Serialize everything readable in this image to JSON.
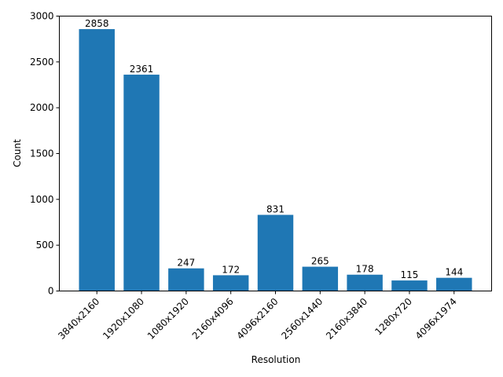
{
  "chart_data": {
    "type": "bar",
    "title": "",
    "xlabel": "Resolution",
    "ylabel": "Count",
    "categories": [
      "3840x2160",
      "1920x1080",
      "1080x1920",
      "2160x4096",
      "4096x2160",
      "2560x1440",
      "2160x3840",
      "1280x720",
      "4096x1974"
    ],
    "values": [
      2858,
      2361,
      247,
      172,
      831,
      265,
      178,
      115,
      144
    ],
    "ylim": [
      0,
      3000
    ],
    "yticks": [
      0,
      500,
      1000,
      1500,
      2000,
      2500,
      3000
    ],
    "grid": false,
    "bar_color": "#1f77b4",
    "data_labels": true
  }
}
